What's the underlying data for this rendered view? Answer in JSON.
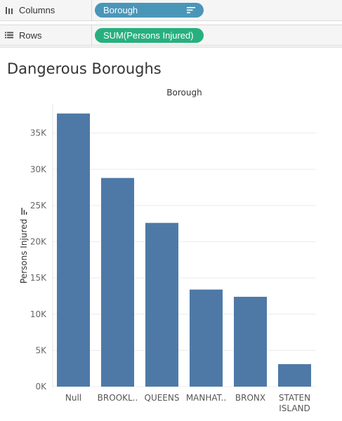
{
  "shelves": {
    "columns": {
      "label": "Columns",
      "pill": "Borough",
      "icon": "columns-shelf-icon"
    },
    "rows": {
      "label": "Rows",
      "pill": "SUM(Persons Injured)",
      "icon": "rows-shelf-icon"
    }
  },
  "colors": {
    "bar": "#4e79a7",
    "columns_pill": "#4a96b9",
    "rows_pill": "#27b07f",
    "gridline": "#ececec"
  },
  "chart_data": {
    "type": "bar",
    "title": "Dangerous Boroughs",
    "column_header": "Borough",
    "ylabel": "Persons Injured",
    "xlabel": "",
    "categories": [
      "Null",
      "BROOKL..",
      "QUEENS",
      "MANHAT..",
      "BRONX",
      "STATEN ISLAND"
    ],
    "category_lines": [
      [
        "Null"
      ],
      [
        "BROOKL.."
      ],
      [
        "QUEENS"
      ],
      [
        "MANHAT.."
      ],
      [
        "BRONX"
      ],
      [
        "STATEN",
        "ISLAND"
      ]
    ],
    "values": [
      37700,
      28800,
      22600,
      13400,
      12400,
      3100
    ],
    "ylim": [
      0,
      40000
    ],
    "yticks": [
      0,
      5000,
      10000,
      15000,
      20000,
      25000,
      30000,
      35000
    ],
    "ytick_labels": [
      "0K",
      "5K",
      "10K",
      "15K",
      "20K",
      "25K",
      "30K",
      "35K"
    ],
    "grid": true,
    "legend": "none"
  }
}
